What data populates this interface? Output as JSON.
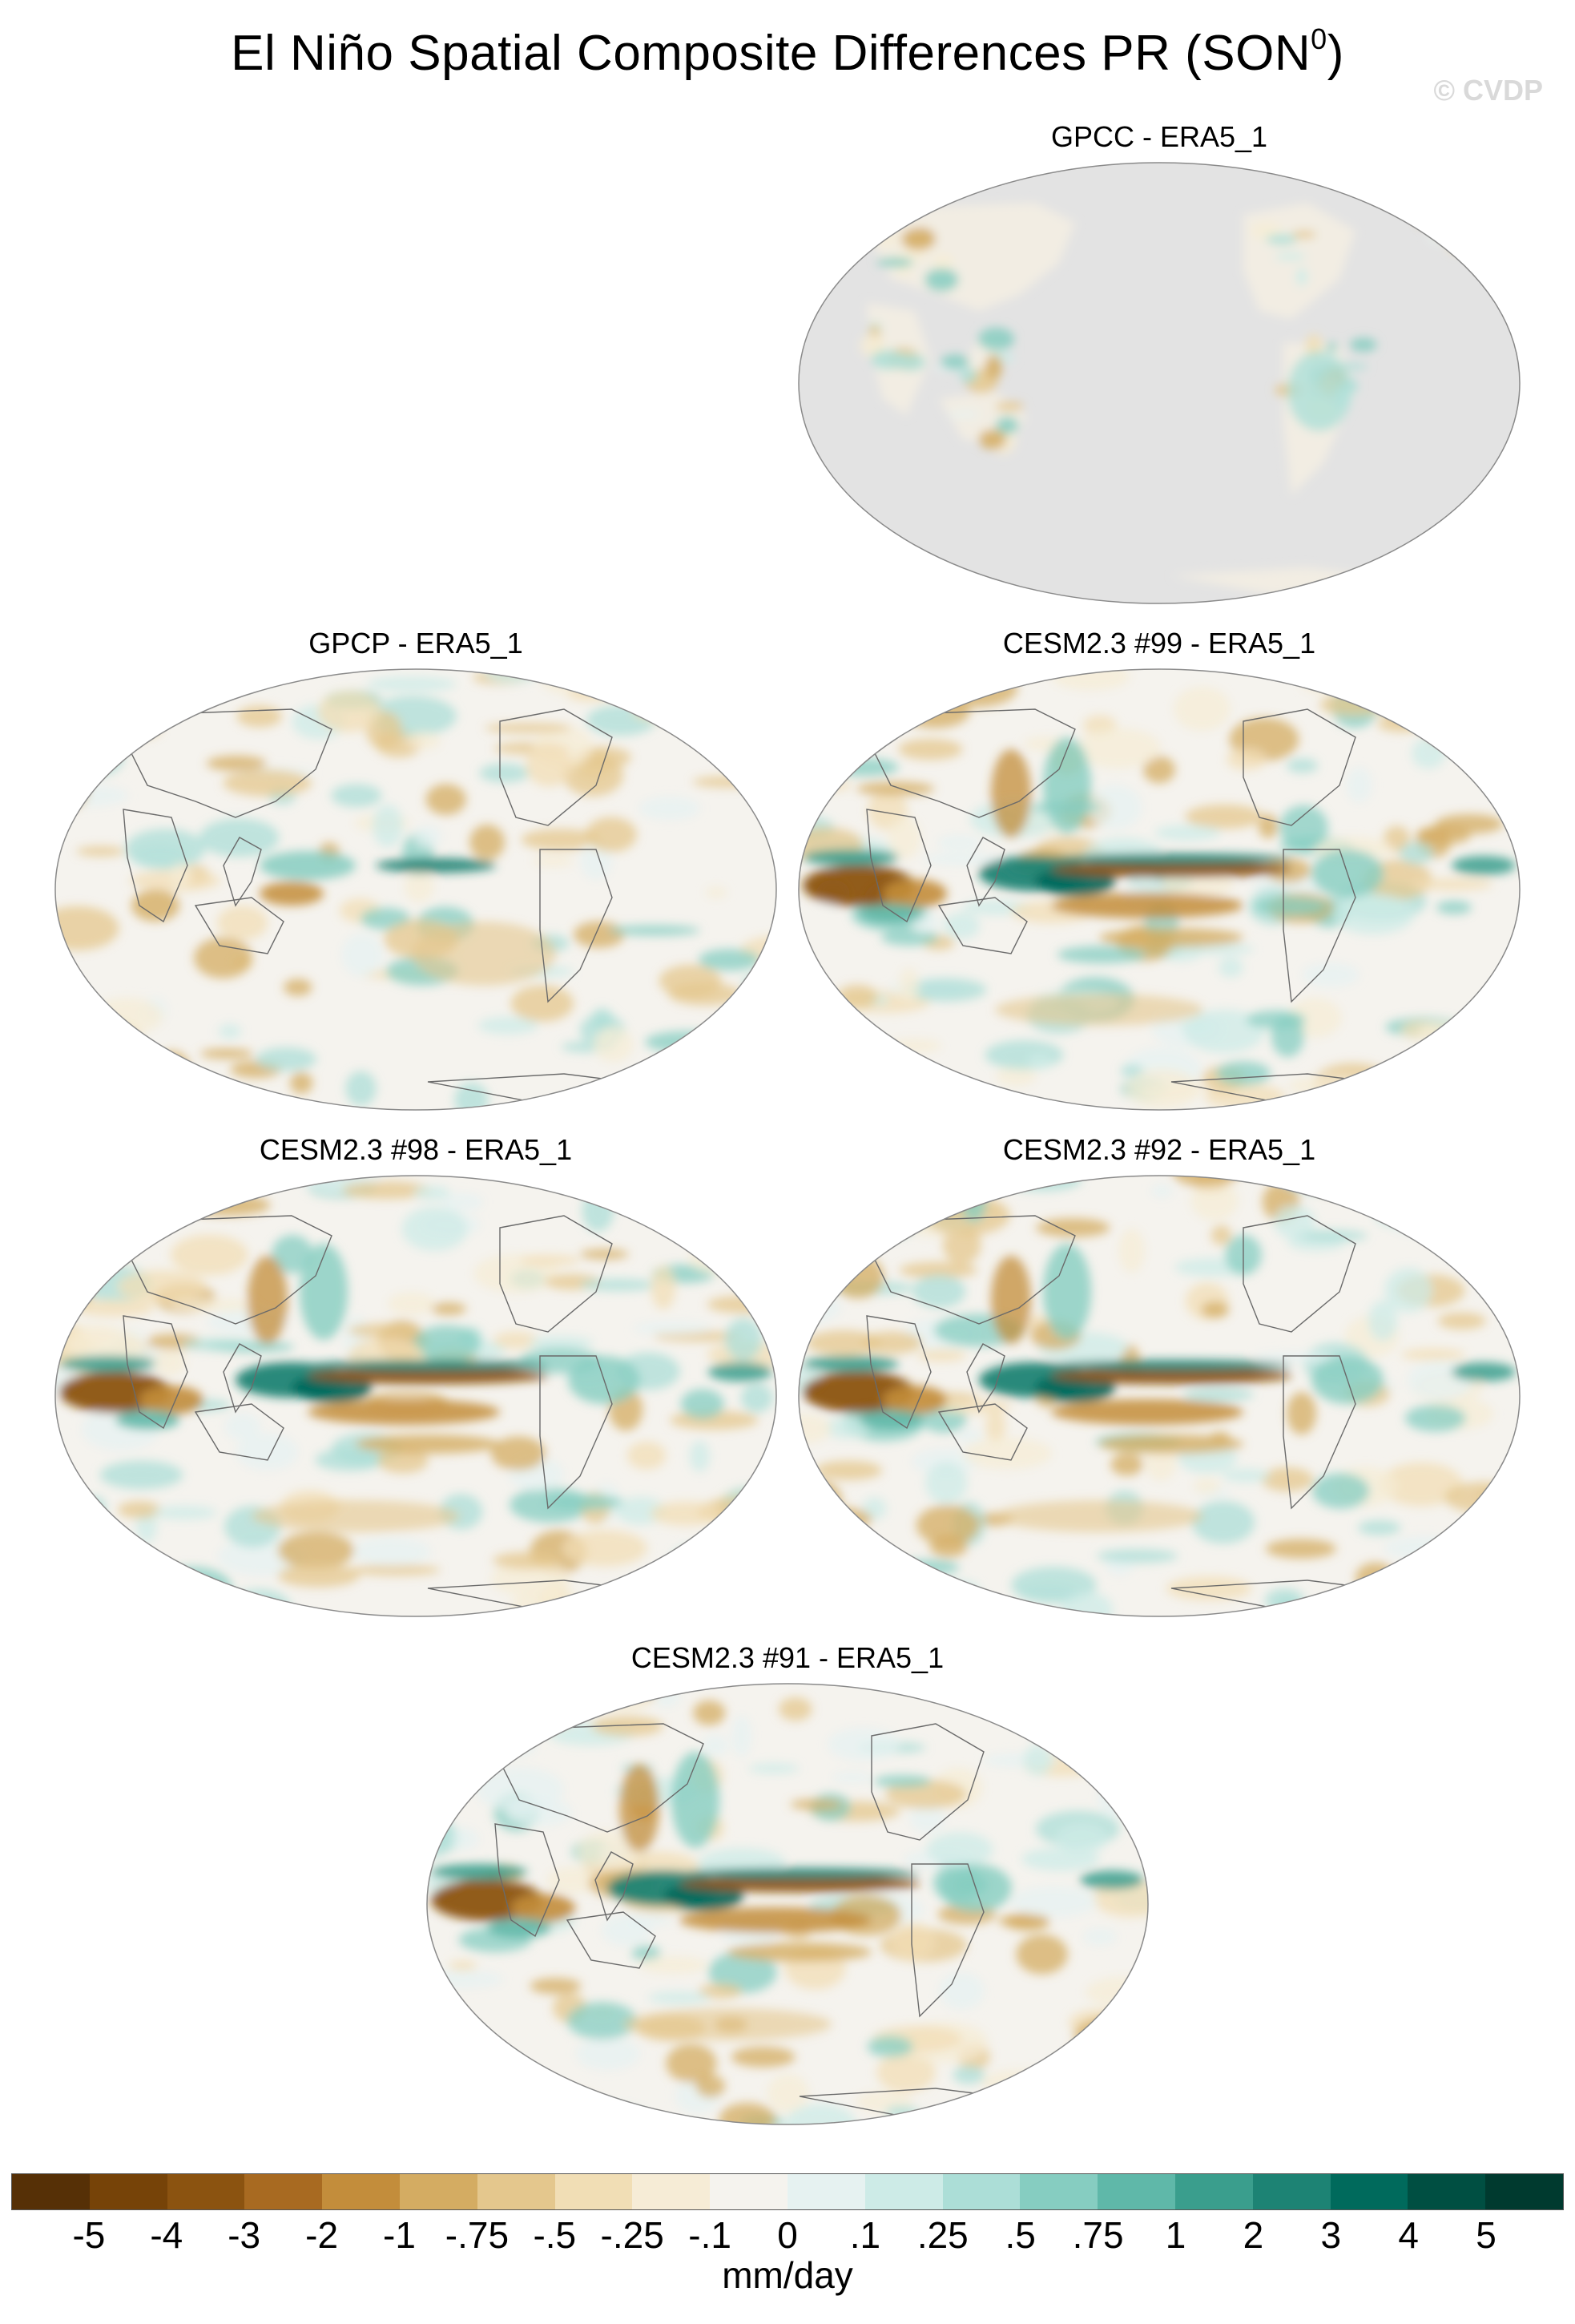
{
  "figure": {
    "title": "El Niño Spatial Composite Differences PR (SON",
    "title_sup": "0",
    "title_close": ")",
    "watermark": "© CVDP"
  },
  "panels": [
    {
      "title": "GPCC - ERA5_1",
      "style": "land"
    },
    {
      "title": "GPCP - ERA5_1",
      "style": "obs"
    },
    {
      "title": "CESM2.3 #99 - ERA5_1",
      "style": "model"
    },
    {
      "title": "CESM2.3 #98 - ERA5_1",
      "style": "model"
    },
    {
      "title": "CESM2.3 #92 - ERA5_1",
      "style": "model"
    },
    {
      "title": "CESM2.3 #91 - ERA5_1",
      "style": "model"
    }
  ],
  "colorbar": {
    "units": "mm/day",
    "colors": [
      "#563006",
      "#764308",
      "#8b5310",
      "#a86a21",
      "#c38d3b",
      "#d4ac62",
      "#e4c78d",
      "#f1deb5",
      "#f6ecd6",
      "#f5f3ee",
      "#e6f2f1",
      "#cdebe7",
      "#acded7",
      "#86cdc1",
      "#5fb8a9",
      "#3a9e8d",
      "#1d8374",
      "#006a5c",
      "#004f42",
      "#003a2f"
    ],
    "labels": [
      "-5",
      "-4",
      "-3",
      "-2",
      "-1",
      "-.75",
      "-.5",
      "-.25",
      "-.1",
      "0",
      ".1",
      ".25",
      ".5",
      ".75",
      "1",
      "2",
      "3",
      "4",
      "5"
    ]
  }
}
